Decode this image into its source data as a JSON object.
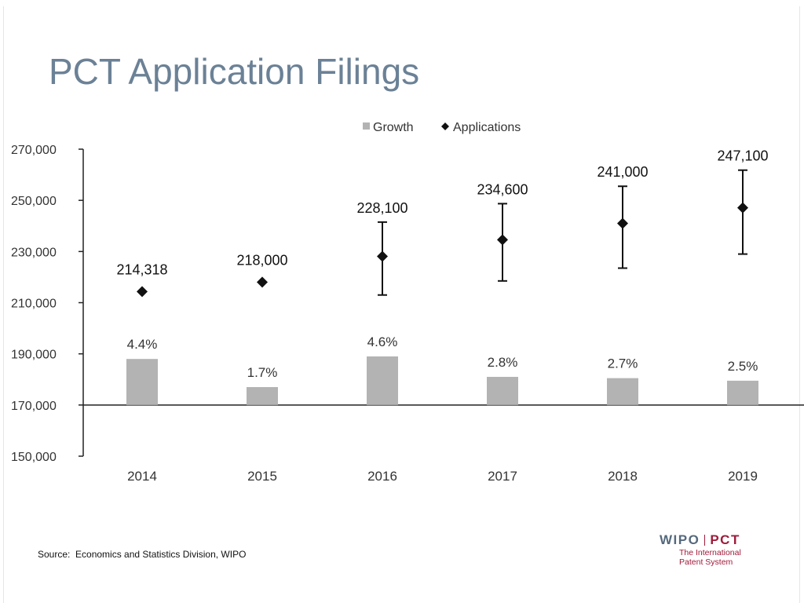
{
  "slide": {
    "title": "PCT Application Filings",
    "source": "Source:  Economics and Statistics Division, WIPO"
  },
  "logo": {
    "wipo": "WIPO",
    "pct": "PCT",
    "tagline_line1": "The International",
    "tagline_line2": "Patent System",
    "colors": {
      "wipo": "#55697d",
      "pct": "#a01b3a"
    }
  },
  "chart_data": {
    "type": "bar",
    "title": "",
    "categories": [
      "2014",
      "2015",
      "2016",
      "2017",
      "2018",
      "2019"
    ],
    "ylim": [
      150000,
      270000
    ],
    "yticks": [
      "150,000",
      "170,000",
      "190,000",
      "210,000",
      "230,000",
      "250,000",
      "270,000"
    ],
    "ytick_values": [
      150000,
      170000,
      190000,
      210000,
      230000,
      250000,
      270000
    ],
    "baseline": 170000,
    "legend": {
      "position": "top-center",
      "entries": [
        {
          "name": "Growth",
          "marker": "square",
          "color": "#b3b3b3"
        },
        {
          "name": "Applications",
          "marker": "diamond",
          "color": "#111111"
        }
      ]
    },
    "series": [
      {
        "name": "Growth",
        "type": "bar",
        "labels": [
          "4.4%",
          "1.7%",
          "4.6%",
          "2.8%",
          "2.7%",
          "2.5%"
        ],
        "values": [
          188000,
          177000,
          189000,
          181000,
          180500,
          179500
        ]
      },
      {
        "name": "Applications",
        "type": "scatter",
        "labels": [
          "214,318",
          "218,000",
          "228,100",
          "234,600",
          "241,000",
          "247,100"
        ],
        "values": [
          214318,
          218000,
          228100,
          234600,
          241000,
          247100
        ],
        "error_low": [
          null,
          null,
          213000,
          218500,
          223500,
          229000
        ],
        "error_high": [
          null,
          null,
          241500,
          248700,
          255500,
          261800
        ]
      }
    ],
    "colors": {
      "bar": "#b3b3b3",
      "marker": "#111111",
      "axis": "#222222"
    }
  }
}
